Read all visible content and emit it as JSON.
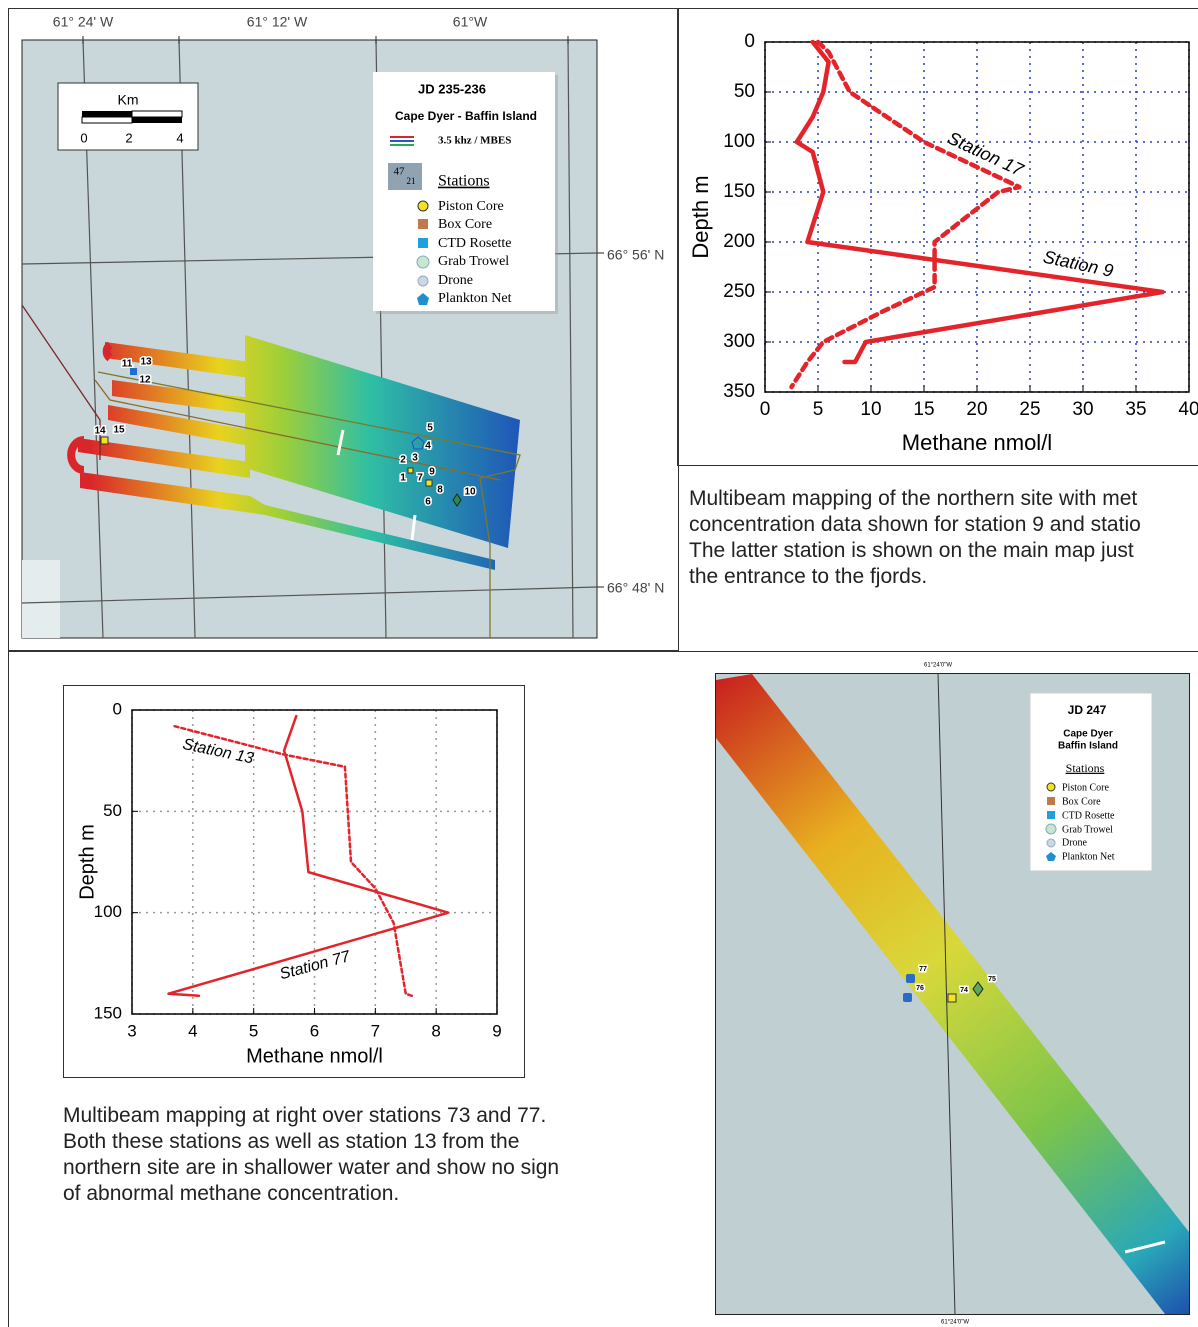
{
  "chart_data": [
    {
      "type": "line",
      "x_label": "Methane nmol/l",
      "y_label": "Depth m",
      "xlim": [
        0,
        40
      ],
      "xticks": [
        0,
        5,
        10,
        15,
        20,
        25,
        30,
        35,
        40
      ],
      "ylim": [
        0,
        350
      ],
      "yticks": [
        0,
        50,
        100,
        150,
        200,
        250,
        300,
        350
      ],
      "y_reversed": true,
      "grid": true,
      "grid_color": "#2a3bb8",
      "series": [
        {
          "name": "Station 9",
          "color": "#e3242b",
          "style": "solid",
          "x": [
            4.5,
            6,
            5.5,
            4.5,
            3,
            4.5,
            5.5,
            4,
            37.5,
            9.5,
            8.5,
            7.5
          ],
          "values": [
            0,
            20,
            50,
            75,
            100,
            110,
            150,
            200,
            250,
            300,
            320,
            320
          ]
        },
        {
          "name": "Station 17",
          "color": "#e3242b",
          "style": "dashed",
          "x": [
            5,
            6,
            8,
            15,
            24,
            22,
            16,
            16,
            11,
            5.5,
            4,
            2.5
          ],
          "values": [
            0,
            10,
            50,
            100,
            145,
            150,
            200,
            245,
            270,
            300,
            320,
            345
          ]
        }
      ]
    },
    {
      "type": "line",
      "x_label": "Methane nmol/l",
      "y_label": "Depth m",
      "xlim": [
        3,
        9
      ],
      "xticks": [
        3,
        4,
        5,
        6,
        7,
        8,
        9
      ],
      "ylim": [
        0,
        150
      ],
      "yticks": [
        0,
        50,
        100,
        150
      ],
      "y_reversed": true,
      "grid": true,
      "grid_color": "#999999",
      "series": [
        {
          "name": "Station 13",
          "color": "#e3242b",
          "style": "dashed",
          "x": [
            3.7,
            5.5,
            6.5,
            6.6,
            7,
            7.3,
            7.5,
            7.6
          ],
          "values": [
            8,
            22,
            28,
            75,
            88,
            105,
            140,
            141
          ]
        },
        {
          "name": "Station 77",
          "color": "#e3242b",
          "style": "solid",
          "x": [
            5.7,
            5.5,
            5.8,
            5.9,
            8.2,
            3.6,
            4.1
          ],
          "values": [
            3,
            20,
            50,
            80,
            100,
            140,
            141
          ]
        }
      ]
    }
  ],
  "northern_map": {
    "lon_labels": [
      "61° 24' W",
      "61° 12' W",
      "61°W"
    ],
    "lat_labels": [
      "66° 56' N",
      "66° 48' N"
    ],
    "scale": {
      "title": "Km",
      "ticks": [
        "0",
        "2",
        "4"
      ]
    },
    "legend": {
      "title": "JD 235-236",
      "subtitle": "Cape Dyer - Baffin Island",
      "track": "3.5 khz / MBES",
      "icon": [
        "47",
        "21"
      ],
      "stations_heading": "Stations",
      "items": [
        "Piston Core",
        "Box Core",
        "CTD Rosette",
        "Grab Trowel",
        "Drone",
        "Plankton Net"
      ]
    },
    "station_labels": [
      "11",
      "13",
      "12",
      "14",
      "15",
      "5",
      "4",
      "2",
      "3",
      "1",
      "7",
      "9",
      "8",
      "6",
      "10"
    ]
  },
  "southern_map": {
    "lon_label_top": "61°24'0\"W",
    "lon_label_bottom": "61°24'0\"W",
    "legend": {
      "title": "JD 247",
      "subtitle": [
        "Cape Dyer",
        "Baffin Island"
      ],
      "stations_heading": "Stations",
      "items": [
        "Piston Core",
        "Box Core",
        "CTD Rosette",
        "Grab Trowel",
        "Drone",
        "Plankton Net"
      ]
    },
    "station_labels": [
      "77",
      "76",
      "74",
      "75"
    ]
  },
  "captions": {
    "northern": [
      "Multibeam mapping of the northern site with met",
      "concentration data shown for station 9 and statio",
      "The latter station is shown on the main map just",
      "the entrance to the fjords."
    ],
    "southern": [
      "Multibeam mapping  at right over stations 73 and 77.",
      "Both these stations as well as station 13 from the",
      "northern site are in shallower water and show no sign",
      "of abnormal methane concentration."
    ]
  }
}
